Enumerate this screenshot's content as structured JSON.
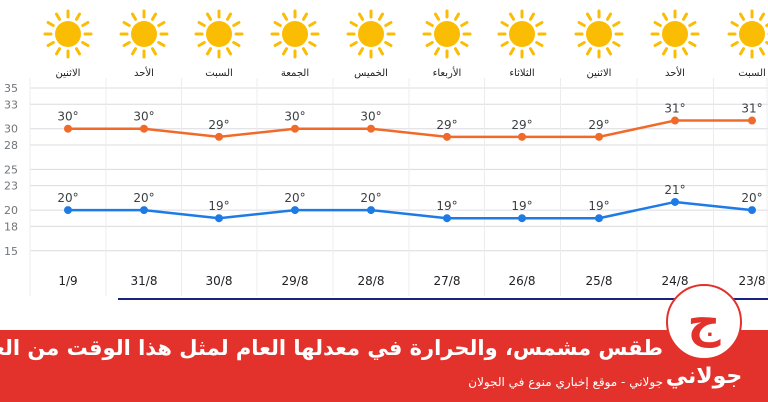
{
  "chart_data": {
    "type": "line",
    "days": [
      "الاثنين",
      "الأحد",
      "السبت",
      "الجمعة",
      "الخميس",
      "الأربعاء",
      "الثلاثاء",
      "الاثنين",
      "الأحد",
      "السبت"
    ],
    "categories": [
      "1/9",
      "31/8",
      "30/8",
      "29/8",
      "28/8",
      "27/8",
      "26/8",
      "25/8",
      "24/8",
      "23/8"
    ],
    "icons": [
      "sun-icon",
      "sun-icon",
      "sun-icon",
      "sun-icon",
      "sun-icon",
      "sun-icon",
      "sun-icon",
      "sun-icon",
      "sun-icon",
      "sun-icon"
    ],
    "yticks": [
      15,
      18,
      20,
      23,
      25,
      28,
      30,
      33,
      35
    ],
    "ylim": [
      13.5,
      35
    ],
    "grid": true,
    "series": [
      {
        "values": [
          30,
          30,
          29,
          30,
          30,
          29,
          29,
          29,
          31,
          31
        ],
        "color": "#f26a2a",
        "labels": [
          "30°",
          "30°",
          "29°",
          "30°",
          "30°",
          "29°",
          "29°",
          "29°",
          "31°",
          "31°"
        ]
      },
      {
        "values": [
          20,
          20,
          19,
          20,
          20,
          19,
          19,
          19,
          21,
          20
        ],
        "color": "#1e7be6",
        "labels": [
          "20°",
          "20°",
          "19°",
          "20°",
          "20°",
          "19°",
          "19°",
          "19°",
          "21°",
          "20°"
        ]
      }
    ]
  },
  "banner": {
    "headline": "طقس مشمس، والحرارة في معدلها العام لمثل هذا الوقت من العام",
    "tagline": "جولاني - موقع إخباري منوع في الجولان",
    "background": "#e3312b"
  },
  "logo": {
    "glyph": "ج",
    "word": "جولاني"
  }
}
